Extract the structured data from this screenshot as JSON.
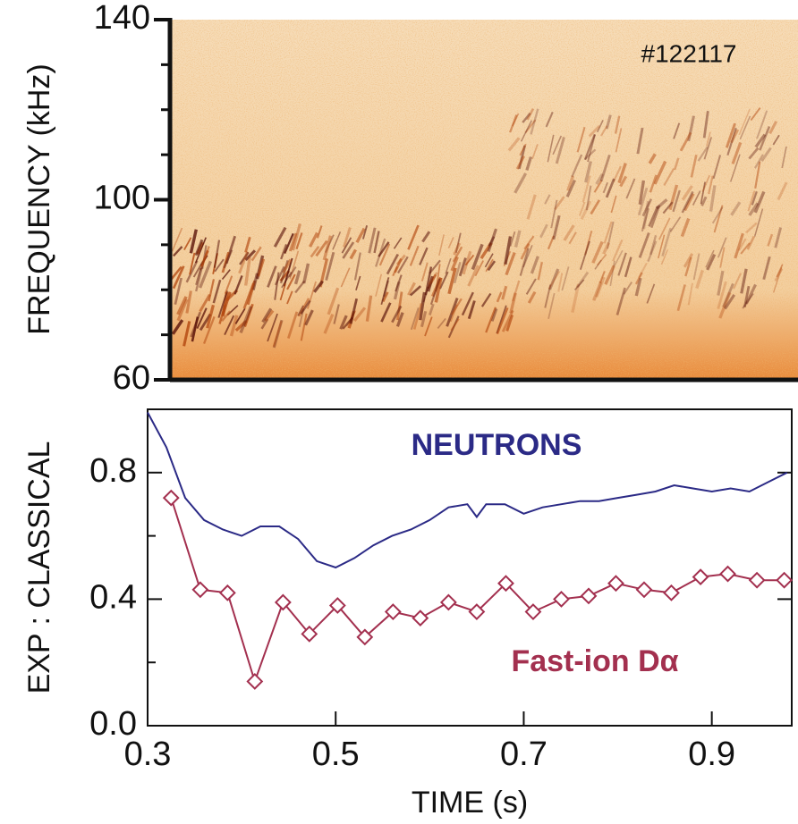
{
  "chart_data": [
    {
      "type": "spectrogram",
      "ylabel": "FREQUENCY (kHz)",
      "annotation": "#122117",
      "ylim": [
        60,
        140
      ],
      "yticks": [
        60,
        100,
        140
      ],
      "yminorticks": [
        70,
        80,
        90,
        110,
        120,
        130
      ]
    },
    {
      "type": "line",
      "xlabel": "TIME (s)",
      "ylabel": "EXP : CLASSICAL",
      "xlim": [
        0.3,
        0.985
      ],
      "xticks": [
        0.3,
        0.5,
        0.7,
        0.9
      ],
      "ylim": [
        0,
        1.0
      ],
      "yticks": [
        {
          "value": 0,
          "label": "0.0"
        },
        0.4,
        0.8
      ],
      "yminorticks": [
        0.2,
        0.6
      ],
      "series": [
        {
          "name": "NEUTRONS",
          "color": "#2b2a86",
          "x": [
            0.3,
            0.32,
            0.34,
            0.36,
            0.38,
            0.4,
            0.42,
            0.44,
            0.46,
            0.48,
            0.5,
            0.52,
            0.54,
            0.56,
            0.58,
            0.6,
            0.62,
            0.64,
            0.65,
            0.66,
            0.68,
            0.7,
            0.72,
            0.74,
            0.76,
            0.78,
            0.8,
            0.82,
            0.84,
            0.86,
            0.88,
            0.9,
            0.92,
            0.94,
            0.96,
            0.98
          ],
          "values": [
            0.99,
            0.88,
            0.72,
            0.65,
            0.62,
            0.6,
            0.63,
            0.63,
            0.59,
            0.52,
            0.5,
            0.53,
            0.57,
            0.6,
            0.62,
            0.65,
            0.69,
            0.7,
            0.66,
            0.7,
            0.7,
            0.67,
            0.69,
            0.7,
            0.71,
            0.71,
            0.72,
            0.73,
            0.74,
            0.76,
            0.75,
            0.74,
            0.75,
            0.74,
            0.77,
            0.8
          ]
        },
        {
          "name": "Fast-ion Dα",
          "color": "#a3304f",
          "marker": "diamond",
          "x": [
            0.325,
            0.356,
            0.385,
            0.414,
            0.444,
            0.472,
            0.502,
            0.531,
            0.561,
            0.59,
            0.62,
            0.65,
            0.681,
            0.71,
            0.74,
            0.769,
            0.798,
            0.828,
            0.857,
            0.888,
            0.917,
            0.948,
            0.977
          ],
          "values": [
            0.72,
            0.43,
            0.42,
            0.14,
            0.39,
            0.29,
            0.38,
            0.28,
            0.36,
            0.34,
            0.39,
            0.36,
            0.45,
            0.36,
            0.4,
            0.41,
            0.45,
            0.43,
            0.42,
            0.47,
            0.48,
            0.46,
            0.46
          ]
        }
      ]
    }
  ]
}
